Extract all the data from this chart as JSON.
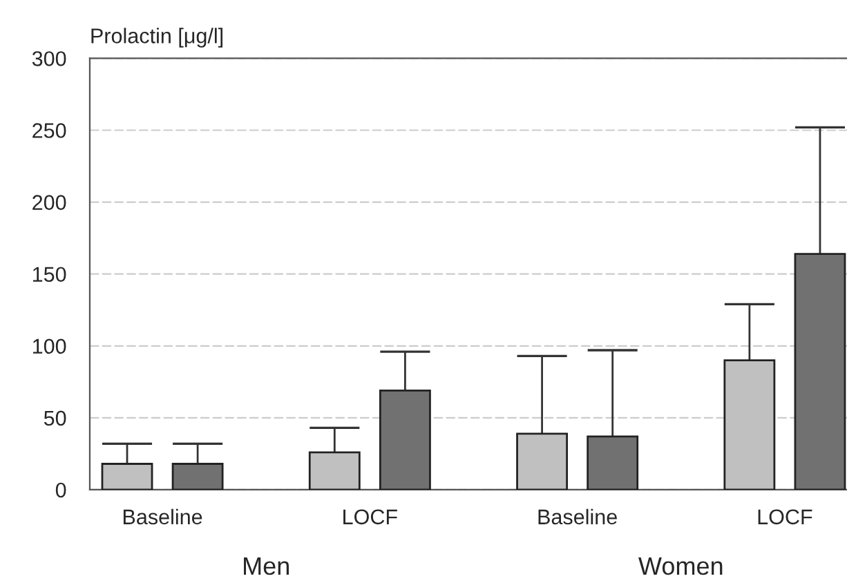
{
  "chart_data": {
    "type": "bar",
    "ylabel": "Prolactin [μg/l]",
    "categories": [
      "Baseline",
      "LOCF",
      "Baseline",
      "LOCF"
    ],
    "series": [
      {
        "color": "#c0c0c0",
        "values": [
          18,
          26,
          39,
          90
        ],
        "errors": [
          [
            18,
            32
          ],
          [
            26,
            43
          ],
          [
            39,
            93
          ],
          [
            90,
            129
          ]
        ]
      },
      {
        "color": "#717171",
        "values": [
          18,
          69,
          37,
          164
        ],
        "errors": [
          [
            18,
            32
          ],
          [
            69,
            96
          ],
          [
            37,
            97
          ],
          [
            164,
            252
          ]
        ]
      }
    ],
    "annotations": [
      "Men",
      "Women"
    ],
    "ylim": [
      0,
      300
    ],
    "yticks": [
      0,
      50,
      100,
      150,
      200,
      250,
      300
    ],
    "grid": "y",
    "legend": false
  }
}
